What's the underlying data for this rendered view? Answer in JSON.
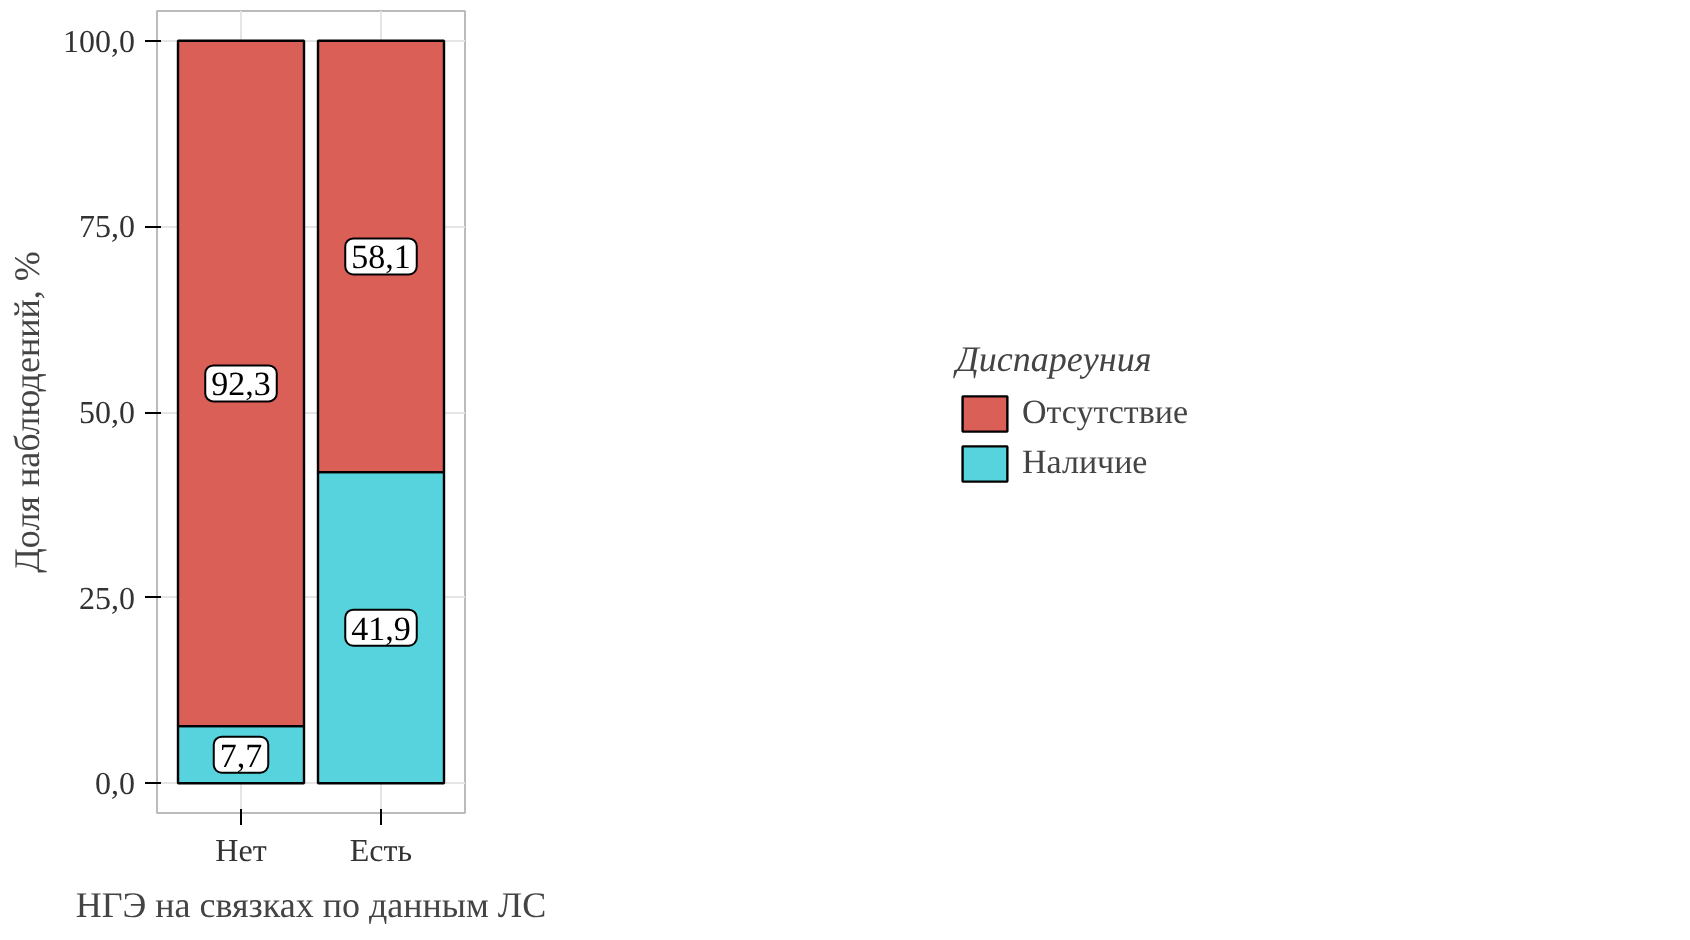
{
  "chart_data": {
    "type": "bar",
    "stacked": true,
    "xlabel": "НГЭ на связках по данным ЛС",
    "ylabel": "Доля наблюдений, %",
    "legend_title": "Диспареуния",
    "categories": [
      "Нет",
      "Есть"
    ],
    "series": [
      {
        "name": "Наличие",
        "color": "#56d3dc",
        "values": [
          7.7,
          41.9
        ],
        "value_labels": [
          "7,7",
          "41,9"
        ]
      },
      {
        "name": "Отсутствие",
        "color": "#d95f57",
        "values": [
          92.3,
          58.1
        ],
        "value_labels": [
          "92,3",
          "58,1"
        ]
      }
    ],
    "ylim": [
      -4,
      104
    ],
    "yticks": [
      {
        "value": 0,
        "label": "0,0"
      },
      {
        "value": 25,
        "label": "25,0"
      },
      {
        "value": 50,
        "label": "50,0"
      },
      {
        "value": 75,
        "label": "75,0"
      },
      {
        "value": 100,
        "label": "100,0"
      }
    ],
    "grid": true,
    "legend": "right"
  }
}
